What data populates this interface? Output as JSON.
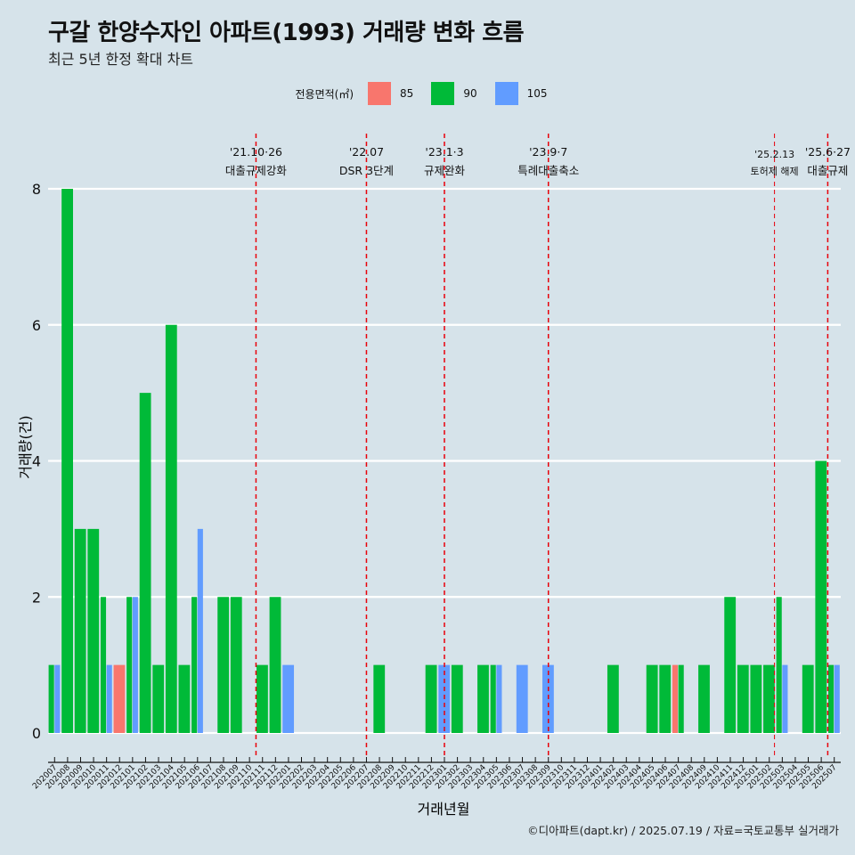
{
  "header": {
    "title": "구갈 한양수자인 아파트(1993) 거래량 변화 흐름",
    "subtitle": "최근 5년 한정 확대 차트"
  },
  "caption": "©디아파트(dapt.kr) / 2025.07.19 / 자료=국토교통부 실거래가",
  "legend": {
    "title": "전용면적(㎡)",
    "items": [
      {
        "label": "85",
        "color": "#f8766d"
      },
      {
        "label": "90",
        "color": "#00ba38"
      },
      {
        "label": "105",
        "color": "#619cff"
      }
    ]
  },
  "chart_data": {
    "type": "bar",
    "xlabel": "거래년월",
    "ylabel": "거래량(건)",
    "ylim": [
      0,
      8
    ],
    "yticks": [
      0,
      2,
      4,
      6,
      8
    ],
    "grid": true,
    "legend_position": "top",
    "categories": [
      "202007",
      "202008",
      "202009",
      "202010",
      "202011",
      "202012",
      "202101",
      "202102",
      "202103",
      "202104",
      "202105",
      "202106",
      "202107",
      "202108",
      "202109",
      "202110",
      "202111",
      "202112",
      "202201",
      "202202",
      "202203",
      "202204",
      "202205",
      "202206",
      "202207",
      "202208",
      "202209",
      "202210",
      "202211",
      "202212",
      "202301",
      "202302",
      "202303",
      "202304",
      "202305",
      "202306",
      "202307",
      "202308",
      "202309",
      "202310",
      "202311",
      "202312",
      "202401",
      "202402",
      "202403",
      "202404",
      "202405",
      "202406",
      "202407",
      "202408",
      "202409",
      "202410",
      "202411",
      "202412",
      "202501",
      "202502",
      "202503",
      "202504",
      "202505",
      "202506",
      "202507"
    ],
    "series": [
      {
        "name": "85",
        "color": "#f8766d",
        "values": [
          0,
          0,
          0,
          0,
          0,
          1,
          0,
          0,
          0,
          0,
          0,
          0,
          0,
          0,
          0,
          0,
          0,
          0,
          0,
          0,
          0,
          0,
          0,
          0,
          0,
          0,
          0,
          0,
          0,
          0,
          0,
          0,
          0,
          0,
          0,
          0,
          0,
          0,
          0,
          0,
          0,
          0,
          0,
          0,
          0,
          0,
          0,
          0,
          1,
          0,
          0,
          0,
          0,
          0,
          0,
          0,
          0,
          0,
          0,
          0,
          0
        ]
      },
      {
        "name": "90",
        "color": "#00ba38",
        "values": [
          1,
          8,
          3,
          3,
          2,
          0,
          2,
          5,
          1,
          6,
          1,
          2,
          0,
          2,
          2,
          0,
          1,
          2,
          0,
          0,
          0,
          0,
          0,
          0,
          0,
          1,
          0,
          0,
          0,
          1,
          0,
          1,
          0,
          1,
          1,
          0,
          0,
          0,
          0,
          0,
          0,
          0,
          0,
          1,
          0,
          0,
          1,
          1,
          1,
          0,
          1,
          0,
          2,
          1,
          1,
          1,
          2,
          0,
          1,
          4,
          1
        ]
      },
      {
        "name": "105",
        "color": "#619cff",
        "values": [
          1,
          0,
          0,
          0,
          1,
          0,
          2,
          0,
          0,
          0,
          0,
          3,
          0,
          0,
          0,
          0,
          0,
          0,
          1,
          0,
          0,
          0,
          0,
          0,
          0,
          0,
          0,
          0,
          0,
          0,
          1,
          0,
          0,
          0,
          1,
          0,
          1,
          0,
          1,
          0,
          0,
          0,
          0,
          0,
          0,
          0,
          0,
          0,
          0,
          0,
          0,
          0,
          0,
          0,
          0,
          0,
          1,
          0,
          0,
          0,
          1
        ]
      }
    ],
    "events": [
      {
        "date": "'21.10·26",
        "label": "대출규제강화",
        "category": "202110",
        "offset": 0.5
      },
      {
        "date": "'22.07",
        "label": "DSR 3단계",
        "category": "202207",
        "offset": 0
      },
      {
        "date": "'23.1·3",
        "label": "규제완화",
        "category": "202301",
        "offset": 0
      },
      {
        "date": "'23.9·7",
        "label": "특례대출축소",
        "category": "202309",
        "offset": 0
      },
      {
        "date": "'25.2.13",
        "label": "토허제 해제",
        "category": "202502",
        "offset": 0.4,
        "small": true
      },
      {
        "date": "'25.6·27",
        "label": "대출규제",
        "category": "202506",
        "offset": 0.5
      }
    ]
  }
}
